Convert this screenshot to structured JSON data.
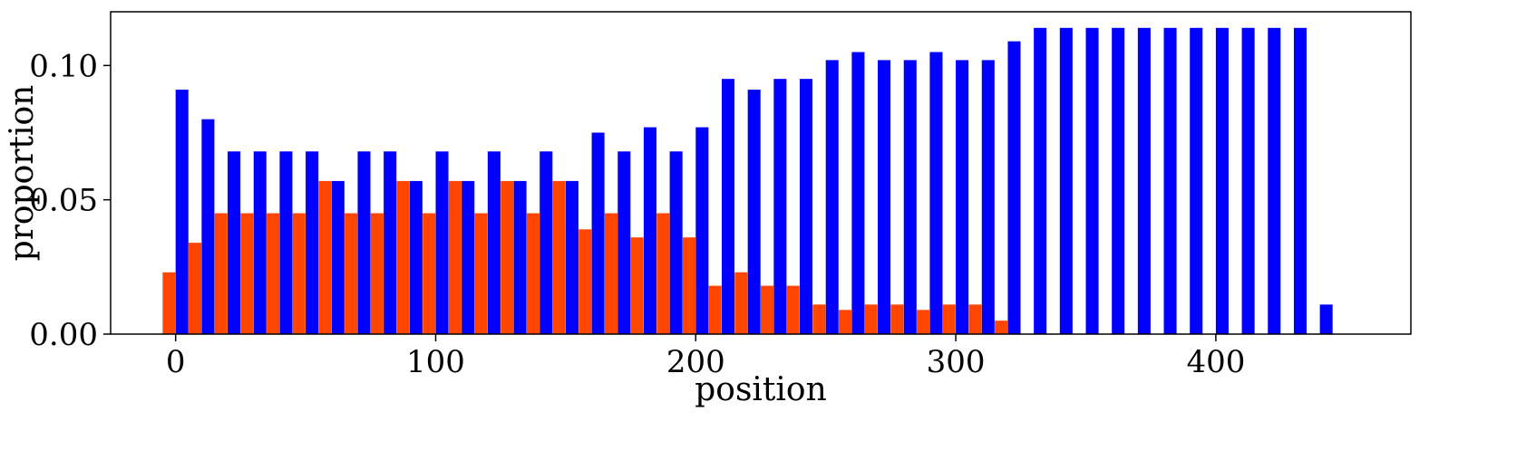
{
  "chart_data": {
    "type": "bar",
    "xlabel": "position",
    "ylabel": "proportion",
    "xlim": [
      -25,
      475
    ],
    "ylim": [
      0,
      0.12
    ],
    "xticks": [
      {
        "value": 0,
        "label": "0"
      },
      {
        "value": 100,
        "label": "100"
      },
      {
        "value": 200,
        "label": "200"
      },
      {
        "value": 300,
        "label": "300"
      },
      {
        "value": 400,
        "label": "400"
      }
    ],
    "yticks": [
      {
        "value": 0.0,
        "label": "0.00"
      },
      {
        "value": 0.05,
        "label": "0.05"
      },
      {
        "value": 0.1,
        "label": "0.10"
      }
    ],
    "grid": false,
    "legend": "none",
    "bin_width": 10,
    "series": [
      {
        "color": "#ff4500",
        "x": [
          0,
          10,
          20,
          30,
          40,
          50,
          60,
          70,
          80,
          90,
          100,
          110,
          120,
          130,
          140,
          150,
          160,
          170,
          180,
          190,
          200,
          210,
          220,
          230,
          240,
          250,
          260,
          270,
          280,
          290,
          300,
          310,
          320,
          330,
          340,
          350,
          360,
          370,
          380,
          390,
          400,
          410,
          420,
          430,
          440
        ],
        "values": [
          0.023,
          0.034,
          0.045,
          0.045,
          0.045,
          0.045,
          0.057,
          0.045,
          0.045,
          0.057,
          0.045,
          0.057,
          0.045,
          0.057,
          0.045,
          0.057,
          0.039,
          0.045,
          0.036,
          0.045,
          0.036,
          0.018,
          0.023,
          0.018,
          0.018,
          0.011,
          0.009,
          0.011,
          0.011,
          0.009,
          0.011,
          0.011,
          0.005,
          0,
          0,
          0,
          0,
          0,
          0,
          0,
          0,
          0,
          0,
          0,
          0
        ]
      },
      {
        "color": "#0000ff",
        "x": [
          0,
          10,
          20,
          30,
          40,
          50,
          60,
          70,
          80,
          90,
          100,
          110,
          120,
          130,
          140,
          150,
          160,
          170,
          180,
          190,
          200,
          210,
          220,
          230,
          240,
          250,
          260,
          270,
          280,
          290,
          300,
          310,
          320,
          330,
          340,
          350,
          360,
          370,
          380,
          390,
          400,
          410,
          420,
          430,
          440
        ],
        "values": [
          0.091,
          0.08,
          0.068,
          0.068,
          0.068,
          0.068,
          0.057,
          0.068,
          0.068,
          0.057,
          0.068,
          0.057,
          0.068,
          0.057,
          0.068,
          0.057,
          0.075,
          0.068,
          0.077,
          0.068,
          0.077,
          0.095,
          0.091,
          0.095,
          0.095,
          0.102,
          0.105,
          0.102,
          0.102,
          0.105,
          0.102,
          0.102,
          0.109,
          0.114,
          0.114,
          0.114,
          0.114,
          0.114,
          0.114,
          0.114,
          0.114,
          0.114,
          0.114,
          0.114,
          0.011
        ]
      }
    ]
  }
}
